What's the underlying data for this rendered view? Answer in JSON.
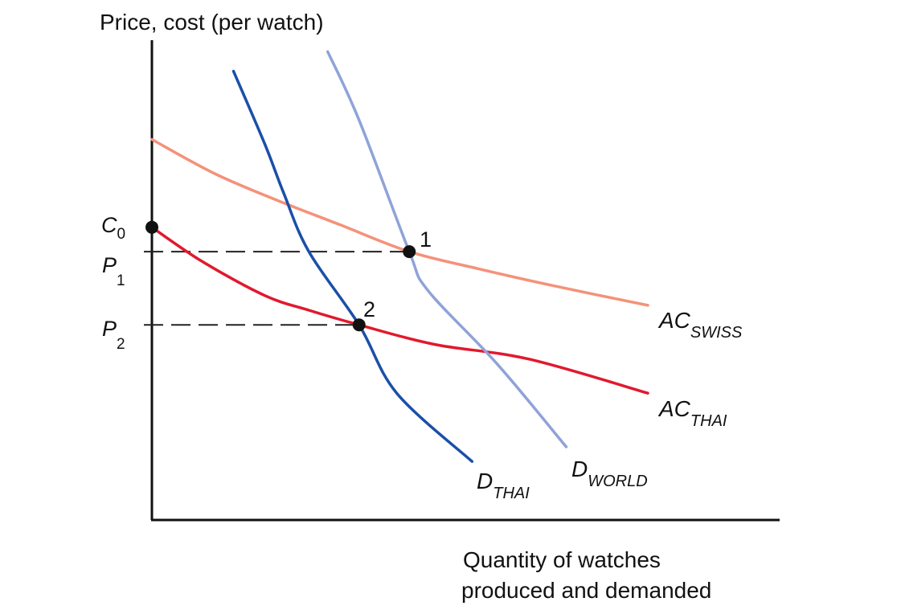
{
  "chart_data": {
    "type": "line",
    "title": "",
    "ylabel": "Price, cost (per watch)",
    "xlabel_lines": [
      "Quantity of watches",
      "produced and demanded"
    ],
    "xlim": [
      0,
      100
    ],
    "ylim": [
      0,
      100
    ],
    "y_tick_labels": {
      "c0": {
        "base": "C",
        "sub": "0",
        "value": 60
      },
      "p1": {
        "base": "P",
        "sub": "1",
        "value": 55
      },
      "p2": {
        "base": "P",
        "sub": "2",
        "value": 40
      }
    },
    "series": [
      {
        "key": "ac_swiss",
        "base": "AC",
        "sub": "SWISS",
        "color": "#f4927a",
        "points": [
          [
            0,
            78
          ],
          [
            10,
            71
          ],
          [
            20,
            65.5
          ],
          [
            30,
            60.5
          ],
          [
            41,
            55
          ],
          [
            52,
            51.5
          ],
          [
            64,
            48
          ],
          [
            79,
            44
          ]
        ]
      },
      {
        "key": "ac_thai",
        "base": "AC",
        "sub": "THAI",
        "color": "#e1192e",
        "points": [
          [
            0,
            60
          ],
          [
            8,
            53
          ],
          [
            18,
            46
          ],
          [
            25,
            43
          ],
          [
            33,
            40
          ],
          [
            45,
            36
          ],
          [
            60,
            33
          ],
          [
            79,
            26
          ]
        ]
      },
      {
        "key": "d_thai",
        "base": "D",
        "sub": "THAI",
        "color": "#1b4fa8",
        "points": [
          [
            13,
            92
          ],
          [
            18,
            77
          ],
          [
            21,
            67
          ],
          [
            25,
            55
          ],
          [
            33,
            40
          ],
          [
            39,
            26
          ],
          [
            51,
            12
          ]
        ]
      },
      {
        "key": "d_world",
        "base": "D",
        "sub": "WORLD",
        "color": "#8fa3d8",
        "points": [
          [
            28,
            96
          ],
          [
            33,
            82
          ],
          [
            41,
            55
          ],
          [
            44,
            47
          ],
          [
            55,
            32
          ],
          [
            66,
            15
          ]
        ]
      }
    ],
    "points": [
      {
        "key": "c0_point",
        "label": "",
        "x": 0,
        "y": 60
      },
      {
        "key": "eq1",
        "label": "1",
        "x": 41,
        "y": 55
      },
      {
        "key": "eq2",
        "label": "2",
        "x": 33,
        "y": 40
      }
    ],
    "dashed_lines": [
      {
        "to_x": 41,
        "y": 55
      },
      {
        "to_x": 33,
        "y": 40
      }
    ]
  }
}
